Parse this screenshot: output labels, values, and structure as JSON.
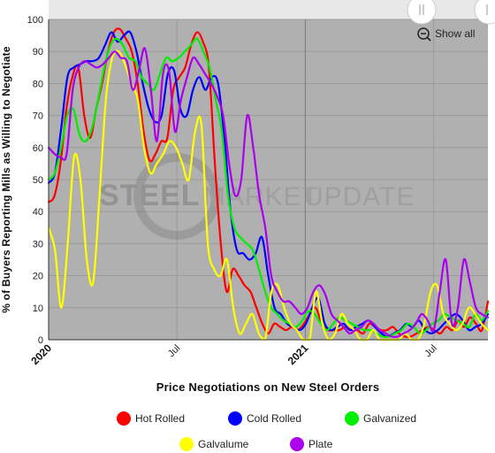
{
  "chart_data": {
    "type": "line",
    "title": "",
    "ylabel": "% of Buyers Reporting Mills as Willing to Negotiate",
    "xlabel": "Price Negotiations on New Steel Orders",
    "ylim": [
      0,
      100
    ],
    "y_ticks": [
      "0",
      "10",
      "20",
      "30",
      "40",
      "50",
      "60",
      "70",
      "80",
      "90",
      "100"
    ],
    "x_ticks": [
      {
        "label": "2020",
        "pos": 0,
        "major": true
      },
      {
        "label": "Jul",
        "pos": 26,
        "major": false
      },
      {
        "label": "2021",
        "pos": 52,
        "major": true
      },
      {
        "label": "Jul",
        "pos": 78,
        "major": false
      }
    ],
    "x_range": [
      0,
      89
    ],
    "grid": true,
    "legend_position": "bottom",
    "watermark": {
      "bold": "STEEL",
      "light_a": "MARKET",
      "light_b": "UPDATE"
    },
    "series": [
      {
        "name": "Hot Rolled",
        "color": "#ff0000",
        "values": [
          43,
          45,
          55,
          72,
          82,
          85,
          70,
          63,
          72,
          80,
          90,
          96,
          97,
          94,
          90,
          80,
          65,
          56,
          58,
          62,
          63,
          78,
          82,
          85,
          92,
          96,
          93,
          85,
          55,
          30,
          15,
          22,
          20,
          17,
          15,
          10,
          5,
          2,
          5,
          4,
          3,
          4,
          3,
          5,
          8,
          10,
          5,
          3,
          3,
          3,
          4,
          3,
          3,
          2,
          5,
          4,
          3,
          3,
          4,
          2,
          1,
          1,
          2,
          3,
          4,
          3,
          2,
          4,
          3,
          6,
          4,
          7,
          5,
          3,
          12
        ]
      },
      {
        "name": "Cold Rolled",
        "color": "#0000ff",
        "values": [
          49,
          52,
          66,
          82,
          85,
          86,
          87,
          87,
          88,
          92,
          96,
          93,
          95,
          96,
          90,
          80,
          72,
          68,
          70,
          83,
          84,
          72,
          70,
          78,
          82,
          78,
          82,
          80,
          63,
          40,
          28,
          27,
          25,
          27,
          32,
          20,
          10,
          8,
          5,
          4,
          3,
          5,
          10,
          13,
          5,
          3,
          4,
          5,
          3,
          4,
          5,
          6,
          4,
          2,
          1,
          2,
          3,
          5,
          4,
          6,
          3,
          2,
          3,
          5,
          7,
          8,
          6,
          3,
          4,
          5,
          8
        ]
      },
      {
        "name": "Galvanized",
        "color": "#00ee00",
        "values": [
          50,
          52,
          60,
          70,
          72,
          64,
          62,
          66,
          75,
          85,
          92,
          94,
          92,
          88,
          87,
          82,
          80,
          78,
          83,
          88,
          87,
          88,
          90,
          92,
          94,
          90,
          85,
          75,
          65,
          45,
          35,
          32,
          30,
          28,
          22,
          15,
          10,
          8,
          6,
          5,
          4,
          6,
          9,
          8,
          5,
          3,
          5,
          7,
          6,
          5,
          4,
          3,
          3,
          2,
          1,
          1,
          2,
          3,
          5,
          4,
          2,
          3,
          5,
          6,
          8,
          7,
          6,
          5,
          4,
          8,
          6,
          9
        ]
      },
      {
        "name": "Galvalume",
        "color": "#ffff00",
        "values": [
          35,
          28,
          10,
          30,
          57,
          50,
          25,
          18,
          45,
          75,
          88,
          90,
          86,
          80,
          75,
          60,
          52,
          55,
          58,
          62,
          60,
          55,
          50,
          65,
          67,
          30,
          22,
          20,
          25,
          10,
          2,
          5,
          8,
          2,
          0,
          15,
          17,
          10,
          5,
          3,
          0,
          0,
          15,
          5,
          0,
          2,
          8,
          5,
          3,
          0,
          0,
          3,
          0,
          0,
          0,
          0,
          2,
          0,
          0,
          5,
          15,
          17,
          8,
          5,
          3,
          5,
          10,
          8,
          5,
          3
        ]
      },
      {
        "name": "Plate",
        "color": "#aa00ee",
        "values": [
          60,
          58,
          57,
          58,
          78,
          85,
          87,
          86,
          85,
          86,
          88,
          90,
          88,
          87,
          78,
          84,
          91,
          78,
          62,
          83,
          84,
          65,
          75,
          82,
          88,
          86,
          83,
          80,
          76,
          70,
          55,
          45,
          50,
          70,
          60,
          45,
          35,
          20,
          15,
          12,
          12,
          10,
          8,
          10,
          15,
          17,
          14,
          8,
          6,
          4,
          2,
          3,
          4,
          6,
          5,
          3,
          2,
          1,
          1,
          2,
          3,
          5,
          8,
          6,
          3,
          15,
          25,
          5,
          10,
          25,
          18,
          10,
          8,
          7
        ]
      }
    ]
  },
  "ui": {
    "show_all_label": "Show all",
    "legend_colors": {
      "Hot Rolled": "#ff0000",
      "Cold Rolled": "#0000ff",
      "Galvanized": "#00ee00",
      "Galvalume": "#ffff00",
      "Plate": "#aa00ee"
    }
  }
}
